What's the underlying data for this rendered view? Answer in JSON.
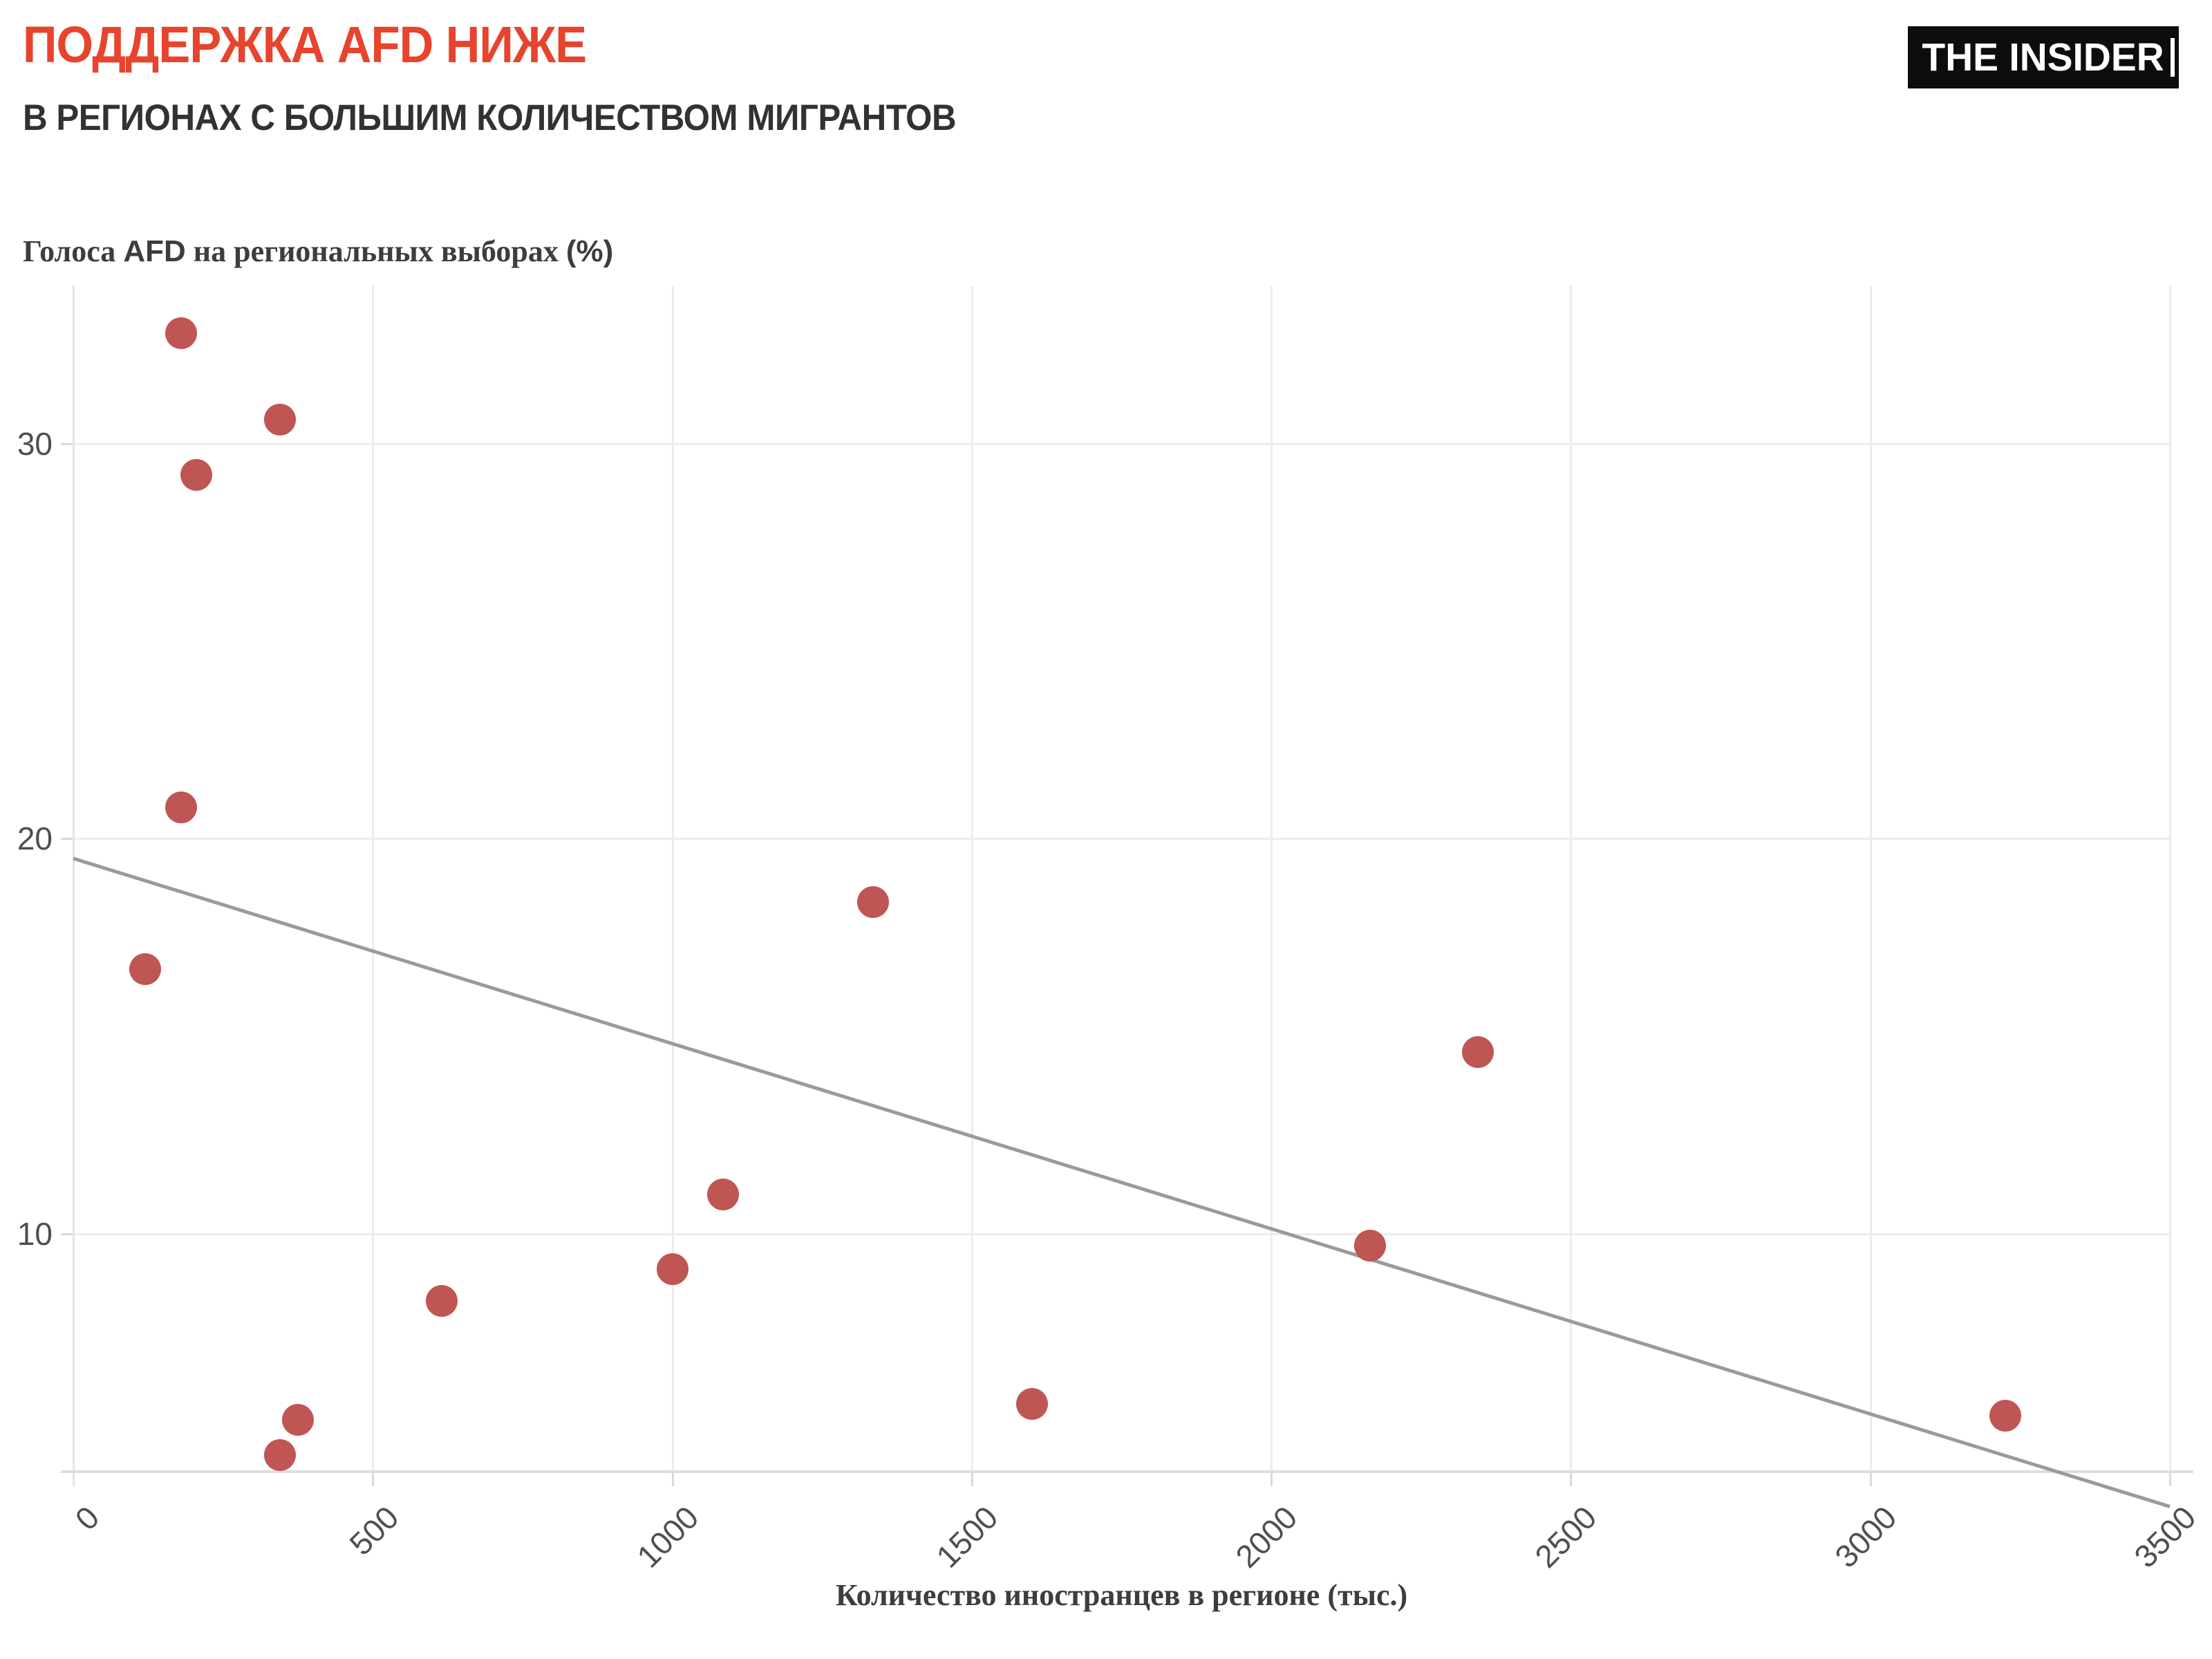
{
  "header": {
    "title": "ПОДДЕРЖКА AFD НИЖЕ",
    "subtitle": "В РЕГИОНАХ С БОЛЬШИМ КОЛИЧЕСТВОМ МИГРАНТОВ",
    "logo": "THE INSIDER"
  },
  "colors": {
    "title_red": "#e8432c",
    "subtitle_dark": "#323232",
    "dot": "#bf5654",
    "trend": "#9a9a9a",
    "grid": "#ececec",
    "tick_text": "#4f4f4f",
    "logo_bg": "#0d0d0d",
    "logo_text": "#ffffff"
  },
  "chart_data": {
    "type": "scatter",
    "title": "ПОДДЕРЖКА AFD НИЖЕ — В РЕГИОНАХ С БОЛЬШИМ КОЛИЧЕСТВОМ МИГРАНТОВ",
    "xlabel": "Количество иностранцев в регионе (тыс.)",
    "ylabel": "Голоса AFD на региональных выборах (%)",
    "ylabel_parts": {
      "pre": "Голоса ",
      "brand": "AFD",
      "mid": " на региональных выборах ",
      "unit": "(%)"
    },
    "xlim": [
      0,
      3500
    ],
    "ylim": [
      4,
      34
    ],
    "x_ticks": [
      0,
      500,
      1000,
      1500,
      2000,
      2500,
      3000,
      3500
    ],
    "y_ticks": [
      30,
      20,
      10
    ],
    "grid": true,
    "legend": false,
    "points": [
      {
        "x": 180,
        "y": 32.8
      },
      {
        "x": 345,
        "y": 30.6
      },
      {
        "x": 205,
        "y": 29.2
      },
      {
        "x": 180,
        "y": 20.8
      },
      {
        "x": 120,
        "y": 16.7
      },
      {
        "x": 1335,
        "y": 18.4
      },
      {
        "x": 2345,
        "y": 14.6
      },
      {
        "x": 1085,
        "y": 11.0
      },
      {
        "x": 1000,
        "y": 9.1
      },
      {
        "x": 615,
        "y": 8.3
      },
      {
        "x": 2165,
        "y": 9.7
      },
      {
        "x": 1600,
        "y": 5.7
      },
      {
        "x": 3225,
        "y": 5.4
      },
      {
        "x": 375,
        "y": 5.3
      },
      {
        "x": 345,
        "y": 4.4
      }
    ],
    "trend_line": {
      "x": [
        0,
        3500
      ],
      "y": [
        19.5,
        3.1
      ]
    }
  }
}
